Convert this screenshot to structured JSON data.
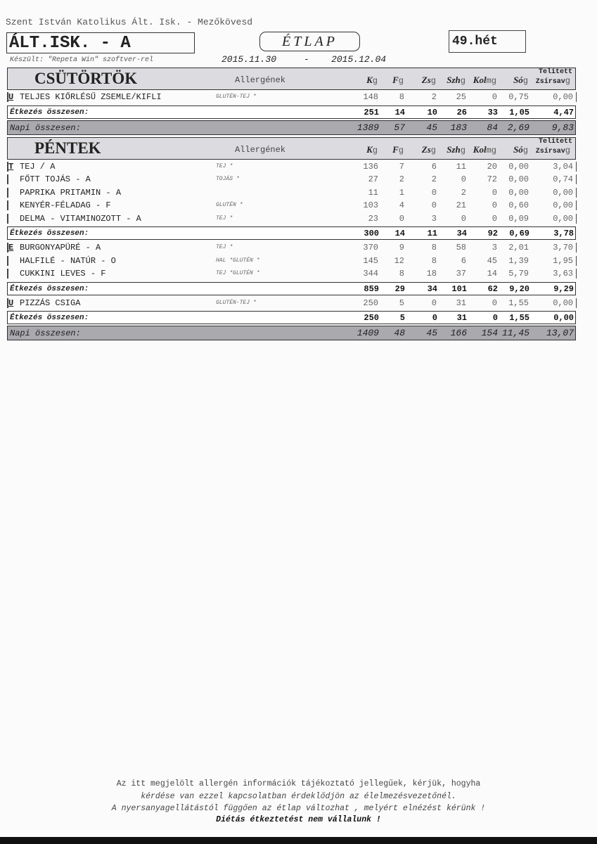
{
  "header": {
    "school": "Szent István Katolikus Ált. Isk. - Mezőkövesd",
    "unit": "ÁLT.ISK. - A",
    "made_with": "Készült: \"Repeta Win\" szoftver-rel",
    "title": "ÉTLAP",
    "date_from": "2015.11.30",
    "date_sep": "-",
    "date_to": "2015.12.04",
    "week": "49.hét"
  },
  "columns": {
    "allergens": "Allergének",
    "saturated_top": "Telített",
    "list": [
      {
        "name": "K",
        "unit": "g"
      },
      {
        "name": "F",
        "unit": "g"
      },
      {
        "name": "Zs",
        "unit": "g"
      },
      {
        "name": "Szh",
        "unit": "g"
      },
      {
        "name": "Kol",
        "unit": "mg"
      },
      {
        "name": "Só",
        "unit": "g"
      },
      {
        "name": "Zsírsav",
        "unit": "g"
      }
    ]
  },
  "labels": {
    "meal_total": "Étkezés összesen:",
    "daily_total": "Napi összesen:"
  },
  "days": [
    {
      "name": "CSÜTÖRTÖK",
      "meals": [
        {
          "code": "U",
          "items": [
            {
              "name": "TELJES KIŐRLÉSŰ ZSEMLE/KIFLI",
              "allergen": "GLUTÉN-TEJ *",
              "values": [
                "148",
                "8",
                "2",
                "25",
                "0",
                "0,75",
                "0,00"
              ]
            }
          ],
          "total": [
            "251",
            "14",
            "10",
            "26",
            "33",
            "1,05",
            "4,47"
          ]
        }
      ],
      "daily_total": [
        "1389",
        "57",
        "45",
        "183",
        "84",
        "2,69",
        "9,83"
      ]
    },
    {
      "name": "PÉNTEK",
      "meals": [
        {
          "code": "T",
          "items": [
            {
              "name": "TEJ / A",
              "allergen": "TEJ *",
              "values": [
                "136",
                "7",
                "6",
                "11",
                "20",
                "0,00",
                "3,04"
              ]
            },
            {
              "name": "FŐTT TOJÁS - A",
              "allergen": "TOJÁS *",
              "values": [
                "27",
                "2",
                "2",
                "0",
                "72",
                "0,00",
                "0,74"
              ]
            },
            {
              "name": "PAPRIKA PRITAMIN - A",
              "allergen": "",
              "values": [
                "11",
                "1",
                "0",
                "2",
                "0",
                "0,00",
                "0,00"
              ]
            },
            {
              "name": "KENYÉR-FÉLADAG - F",
              "allergen": "GLUTÉN *",
              "values": [
                "103",
                "4",
                "0",
                "21",
                "0",
                "0,60",
                "0,00"
              ]
            },
            {
              "name": "DELMA - VITAMINOZOTT - A",
              "allergen": "TEJ *",
              "values": [
                "23",
                "0",
                "3",
                "0",
                "0",
                "0,09",
                "0,00"
              ]
            }
          ],
          "total": [
            "300",
            "14",
            "11",
            "34",
            "92",
            "0,69",
            "3,78"
          ]
        },
        {
          "code": "E",
          "items": [
            {
              "name": "BURGONYAPÜRÉ - A",
              "allergen": "TEJ *",
              "values": [
                "370",
                "9",
                "8",
                "58",
                "3",
                "2,01",
                "3,70"
              ]
            },
            {
              "name": "HALFILÉ - NATÚR - O",
              "allergen": "HAL *GLUTÉN *",
              "values": [
                "145",
                "12",
                "8",
                "6",
                "45",
                "1,39",
                "1,95"
              ]
            },
            {
              "name": "CUKKINI LEVES - F",
              "allergen": "TEJ *GLUTÉN *",
              "values": [
                "344",
                "8",
                "18",
                "37",
                "14",
                "5,79",
                "3,63"
              ]
            }
          ],
          "total": [
            "859",
            "29",
            "34",
            "101",
            "62",
            "9,20",
            "9,29"
          ]
        },
        {
          "code": "U",
          "items": [
            {
              "name": "PIZZÁS CSIGA",
              "allergen": "GLUTÉN-TEJ *",
              "values": [
                "250",
                "5",
                "0",
                "31",
                "0",
                "1,55",
                "0,00"
              ]
            }
          ],
          "total": [
            "250",
            "5",
            "0",
            "31",
            "0",
            "1,55",
            "0,00"
          ]
        }
      ],
      "daily_total": [
        "1409",
        "48",
        "45",
        "166",
        "154",
        "11,45",
        "13,07"
      ]
    }
  ],
  "footer": {
    "line1": "Az itt megjelölt allergén információk tájékoztató jellegűek, kérjük, hogyha",
    "line2": "kérdése van ezzel kapcsolatban érdeklődjön az élelmezésvezetőnél.",
    "line3": "A nyersanyagellátástól függően az étlap változhat , melyért elnézést kérünk !",
    "line4": "Diétás étkeztetést nem vállalunk !"
  }
}
